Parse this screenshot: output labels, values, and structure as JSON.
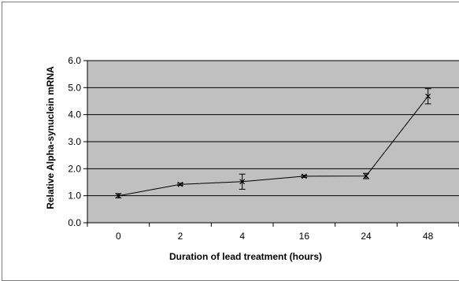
{
  "chart_data": {
    "type": "line",
    "categories": [
      "0",
      "2",
      "4",
      "16",
      "24",
      "48"
    ],
    "series": [
      {
        "values": [
          1.0,
          1.42,
          1.52,
          1.72,
          1.73,
          4.68
        ],
        "error": [
          0.08,
          0.04,
          0.28,
          0.04,
          0.1,
          0.28
        ]
      }
    ],
    "xlabel": "Duration of lead treatment (hours)",
    "ylabel": "Relative Alpha-synuclein mRNA",
    "ylim": [
      0,
      6
    ],
    "yticks": [
      "0.0",
      "1.0",
      "2.0",
      "3.0",
      "4.0",
      "5.0",
      "6.0"
    ],
    "grid": true,
    "plot_background": "#c0c0c0",
    "line_color": "#000000",
    "legend": "none"
  }
}
